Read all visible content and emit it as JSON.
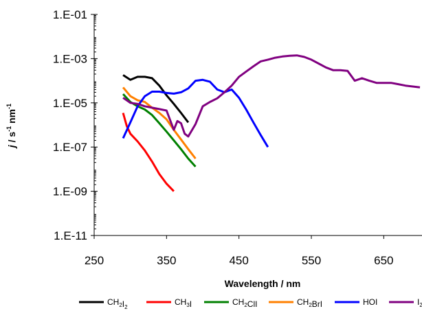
{
  "chart_data": {
    "type": "line",
    "title": "",
    "xlabel": "Wavelength / nm",
    "ylabel": {
      "italic": "j",
      "unit_prefix": " / s",
      "sup1": "-1",
      "unit_mid": " nm",
      "sup2": "-1"
    },
    "xlim": [
      250,
      700
    ],
    "ylim": [
      1e-11,
      0.1
    ],
    "yscale": "log",
    "x_ticks": [
      250,
      350,
      450,
      550,
      650
    ],
    "x_tick_labels": [
      "250",
      "350",
      "450",
      "550",
      "650"
    ],
    "y_ticks": [
      1e-11,
      1e-09,
      1e-07,
      1e-05,
      0.001,
      0.1
    ],
    "y_tick_labels": [
      "1.E-11",
      "1.E-09",
      "1.E-07",
      "1.E-05",
      "1.E-03",
      "1.E-01"
    ],
    "grid": false,
    "legend": "bottom",
    "series": [
      {
        "name": "CH2I2",
        "label_parts": [
          [
            "CH",
            ""
          ],
          [
            "2",
            "sub"
          ],
          [
            "I",
            ""
          ],
          [
            "2",
            "sub"
          ]
        ],
        "color": "#000000",
        "x": [
          290,
          300,
          310,
          320,
          330,
          340,
          350,
          360,
          370,
          380
        ],
        "y": [
          0.00018,
          0.00011,
          0.00015,
          0.00015,
          0.00013,
          6e-05,
          2.2e-05,
          9e-06,
          3.5e-06,
          1.3e-06
        ]
      },
      {
        "name": "CH3I",
        "label_parts": [
          [
            "CH",
            ""
          ],
          [
            "3",
            "sub"
          ],
          [
            "I",
            ""
          ]
        ],
        "color": "#ff0000",
        "x": [
          290,
          295,
          300,
          310,
          320,
          330,
          340,
          350,
          360
        ],
        "y": [
          3.5e-06,
          9e-07,
          4e-07,
          1.8e-07,
          7e-08,
          2.2e-08,
          6e-09,
          2.2e-09,
          1e-09
        ]
      },
      {
        "name": "CH2ClI",
        "label_parts": [
          [
            "CH",
            ""
          ],
          [
            "2",
            "sub"
          ],
          [
            "ClI",
            ""
          ]
        ],
        "color": "#008000",
        "x": [
          290,
          300,
          310,
          320,
          330,
          340,
          350,
          360,
          370,
          380,
          390
        ],
        "y": [
          2.5e-05,
          1.1e-05,
          7e-06,
          5e-06,
          2.8e-06,
          1.2e-06,
          5e-07,
          2e-07,
          8e-08,
          3e-08,
          1.3e-08
        ]
      },
      {
        "name": "CH2BrI",
        "label_parts": [
          [
            "CH",
            ""
          ],
          [
            "2",
            "sub"
          ],
          [
            "BrI",
            ""
          ]
        ],
        "color": "#ff8000",
        "x": [
          290,
          300,
          310,
          320,
          330,
          340,
          350,
          360,
          370,
          380,
          390
        ],
        "y": [
          5e-05,
          2e-05,
          1.3e-05,
          1.1e-05,
          6e-06,
          3.5e-06,
          1.8e-06,
          6e-07,
          2.2e-07,
          8e-08,
          3e-08
        ]
      },
      {
        "name": "HOI",
        "label_parts": [
          [
            "HOI",
            ""
          ]
        ],
        "color": "#0000ff",
        "x": [
          290,
          300,
          310,
          320,
          330,
          340,
          350,
          360,
          370,
          380,
          390,
          400,
          410,
          420,
          430,
          440,
          450,
          460,
          470,
          480,
          490
        ],
        "y": [
          2.5e-07,
          1.3e-06,
          7e-06,
          2e-05,
          3.2e-05,
          3.2e-05,
          2.8e-05,
          2.6e-05,
          3e-05,
          4.5e-05,
          0.0001,
          0.00011,
          9e-05,
          4e-05,
          3e-05,
          4e-05,
          1.7e-05,
          5e-06,
          1.3e-06,
          3.5e-07,
          1e-07
        ]
      },
      {
        "name": "I2",
        "label_parts": [
          [
            "I",
            ""
          ],
          [
            "2",
            "sub"
          ]
        ],
        "color": "#800080",
        "x": [
          290,
          300,
          310,
          320,
          330,
          340,
          350,
          360,
          365,
          370,
          375,
          380,
          390,
          400,
          410,
          420,
          430,
          440,
          450,
          460,
          470,
          480,
          490,
          500,
          510,
          520,
          530,
          540,
          550,
          560,
          570,
          580,
          590,
          600,
          610,
          620,
          630,
          640,
          650,
          660,
          670,
          680,
          690,
          700
        ],
        "y": [
          1.7e-05,
          1e-05,
          9e-06,
          7e-06,
          6e-06,
          5.2e-06,
          4.5e-06,
          6e-07,
          1.5e-06,
          1.2e-06,
          4e-07,
          3e-07,
          1.1e-06,
          7e-06,
          1.1e-05,
          1.6e-05,
          3e-05,
          6e-05,
          0.00015,
          0.00026,
          0.00045,
          0.00075,
          0.0009,
          0.0011,
          0.00125,
          0.00135,
          0.0014,
          0.0012,
          0.0009,
          0.0006,
          0.0004,
          0.0003,
          0.0003,
          0.00028,
          0.0001,
          0.00013,
          0.0001,
          8e-05,
          8e-05,
          8e-05,
          7e-05,
          6e-05,
          5.5e-05,
          5e-05
        ]
      }
    ]
  }
}
